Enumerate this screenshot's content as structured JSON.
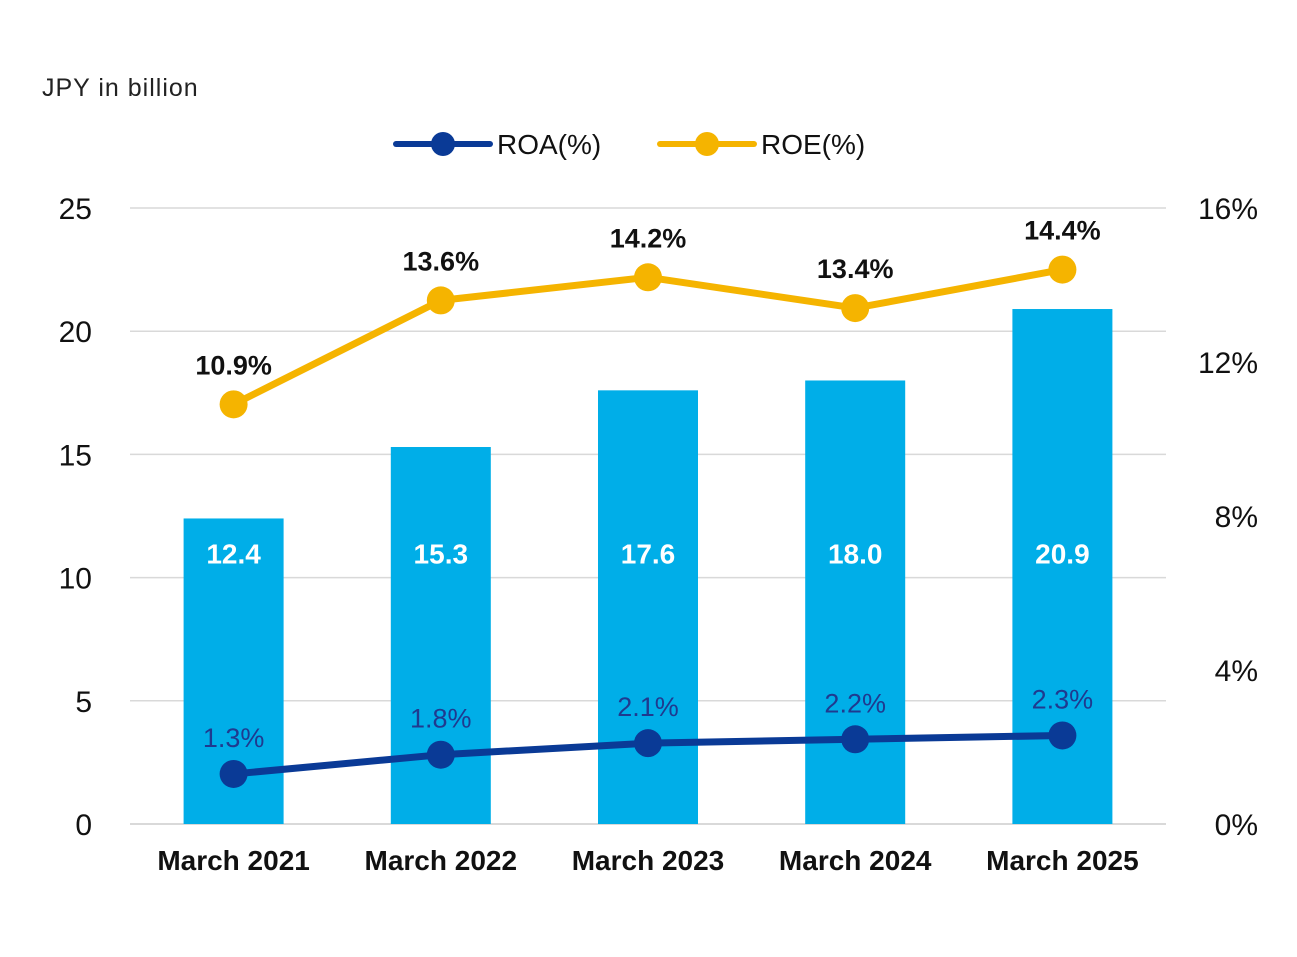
{
  "chart_data": {
    "type": "bar",
    "unit_label": "JPY in billion",
    "categories": [
      "March 2021",
      "March 2022",
      "March 2023",
      "March 2024",
      "March 2025"
    ],
    "bars": {
      "values": [
        12.4,
        15.3,
        17.6,
        18.0,
        20.9
      ],
      "labels": [
        "12.4",
        "15.3",
        "17.6",
        "18.0",
        "20.9"
      ],
      "color": "#00aee8"
    },
    "lines": [
      {
        "name": "ROA(%)",
        "values": [
          1.3,
          1.8,
          2.1,
          2.2,
          2.3
        ],
        "labels": [
          "1.3%",
          "1.8%",
          "2.1%",
          "2.2%",
          "2.3%"
        ],
        "color": "#0a3a96",
        "label_color": "#1f3a8f"
      },
      {
        "name": "ROE(%)",
        "values": [
          10.9,
          13.6,
          14.2,
          13.4,
          14.4
        ],
        "labels": [
          "10.9%",
          "13.6%",
          "14.2%",
          "13.4%",
          "14.4%"
        ],
        "color": "#f5b400"
      }
    ],
    "y_left": {
      "min": 0,
      "max": 25,
      "ticks": [
        "0",
        "5",
        "10",
        "15",
        "20",
        "25"
      ]
    },
    "y_right": {
      "min": 0,
      "max": 16,
      "ticks": [
        "0%",
        "4%",
        "8%",
        "12%",
        "16%"
      ]
    },
    "grid": true,
    "legend_position": "top-center",
    "gridline_color": "#d9d9d9"
  }
}
